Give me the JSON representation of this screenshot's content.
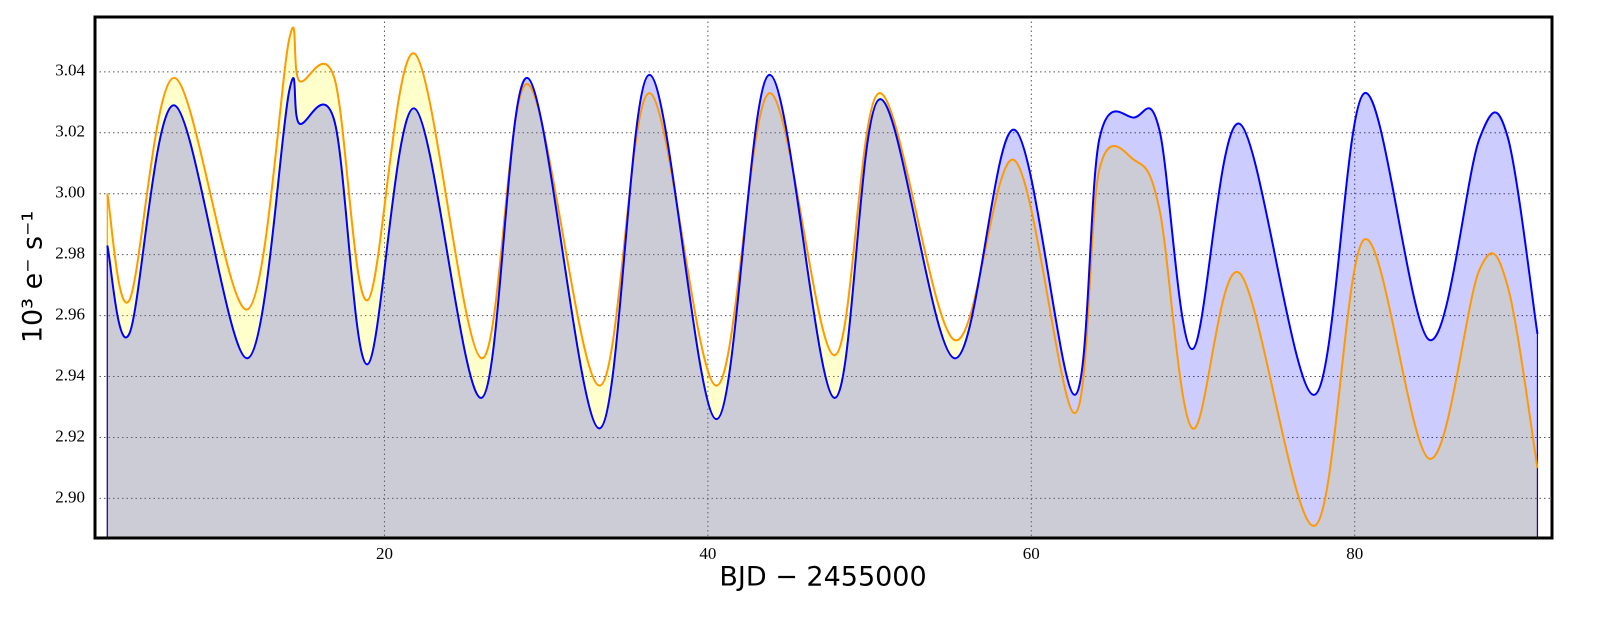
{
  "chart_data": {
    "type": "line",
    "xlabel": "BJD − 2455000",
    "ylabel": "10³ e⁻ s⁻¹",
    "x": [
      2.86,
      4.22,
      7.01,
      11.52,
      14.12,
      14.74,
      16.9,
      18.94,
      21.85,
      26.0,
      28.84,
      33.29,
      36.38,
      40.53,
      43.8,
      47.82,
      50.61,
      55.24,
      58.95,
      62.67,
      64.21,
      66.38,
      67.92,
      69.96,
      72.87,
      77.51,
      80.6,
      84.62,
      87.71,
      89.44,
      91.3
    ],
    "series": [
      {
        "color": "#ff9900",
        "fill": "#ffff00",
        "values": [
          3.0,
          2.965,
          3.038,
          2.962,
          3.051,
          3.037,
          3.038,
          2.965,
          3.046,
          2.946,
          3.036,
          2.937,
          3.033,
          2.937,
          3.033,
          2.947,
          3.033,
          2.952,
          3.011,
          2.928,
          3.008,
          3.011,
          2.995,
          2.923,
          2.974,
          2.891,
          2.985,
          2.913,
          2.975,
          2.97,
          2.91
        ]
      },
      {
        "color": "#0000ff",
        "fill": "#0000ff",
        "values": [
          2.983,
          2.954,
          3.029,
          2.946,
          3.034,
          3.023,
          3.024,
          2.944,
          3.028,
          2.933,
          3.038,
          2.923,
          3.039,
          2.926,
          3.039,
          2.933,
          3.031,
          2.946,
          3.021,
          2.934,
          3.018,
          3.025,
          3.021,
          2.949,
          3.023,
          2.934,
          3.033,
          2.952,
          3.018,
          3.019,
          2.954
        ]
      }
    ],
    "xlim": [
      2.1,
      92.2
    ],
    "ylim": [
      2.887,
      3.058
    ],
    "xticks": [
      20,
      40,
      60,
      80
    ],
    "yticks": [
      {
        "value": 2.9,
        "label": "2.90"
      },
      2.92,
      2.94,
      2.96,
      2.98,
      {
        "value": 3.0,
        "label": "3.00"
      },
      3.02,
      3.04
    ],
    "grid": true
  }
}
